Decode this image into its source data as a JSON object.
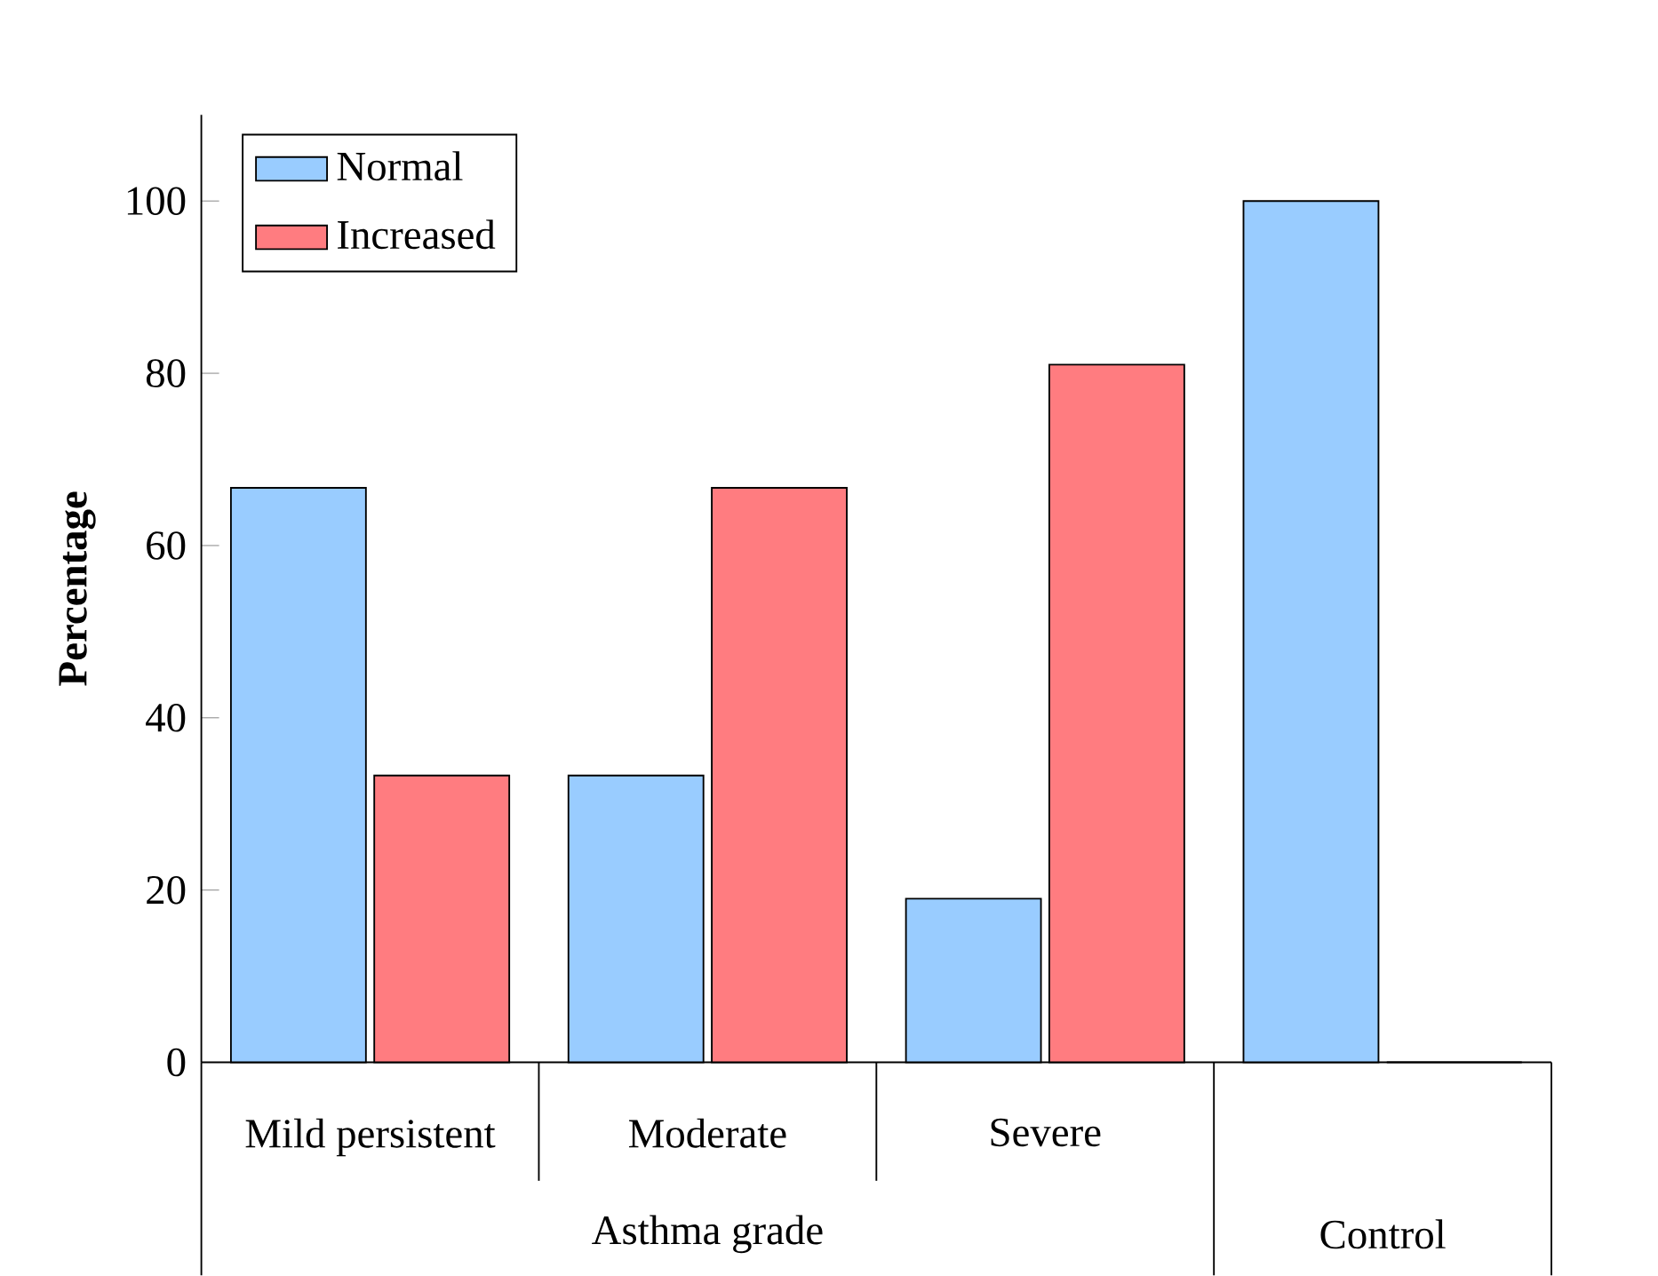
{
  "chart_data": {
    "type": "bar",
    "ylabel": "Percentage",
    "categories": [
      "Mild persistent",
      "Moderate",
      "Severe",
      null
    ],
    "series": [
      {
        "name": "Normal",
        "color": "#99ccff",
        "values": [
          66.7,
          33.3,
          19,
          100
        ]
      },
      {
        "name": "Increased",
        "color": "#ff7c80",
        "values": [
          33.3,
          66.7,
          81,
          0
        ]
      }
    ],
    "ylim": [
      0,
      110
    ],
    "yticks": [
      0,
      20,
      40,
      60,
      80,
      100
    ],
    "legend": "top left",
    "annotations": [
      "Asthma grade",
      "Control"
    ]
  }
}
